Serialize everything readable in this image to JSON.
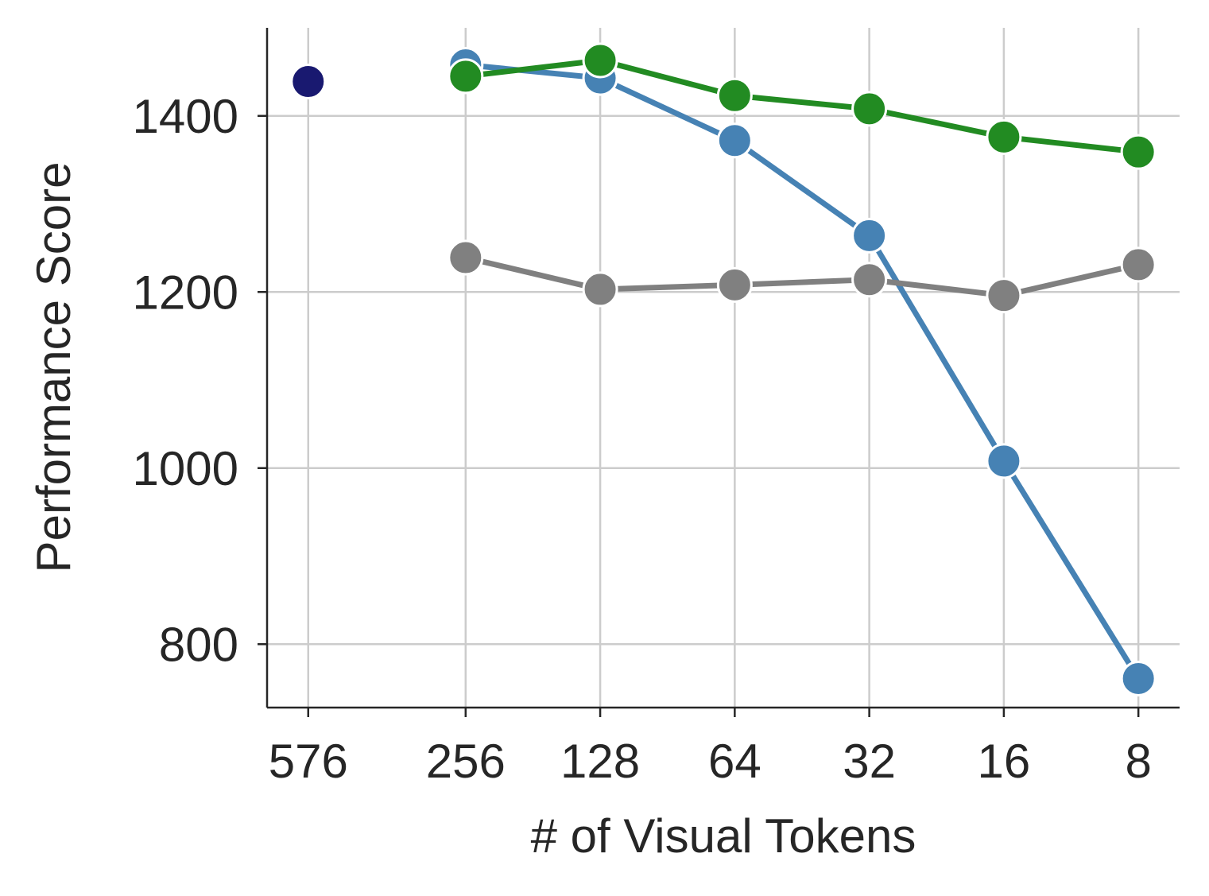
{
  "chart_data": {
    "type": "line",
    "xlabel": "# of Visual Tokens",
    "ylabel": "Performance Score",
    "xscale": "log",
    "xlim": [
      712,
      6.47
    ],
    "xticks": [
      576,
      256,
      128,
      64,
      32,
      16,
      8
    ],
    "ylim": [
      728,
      1500
    ],
    "yticks": [
      800,
      1000,
      1200,
      1400
    ],
    "grid": true,
    "series": [
      {
        "color": "#191970",
        "x": [
          576
        ],
        "values": [
          1439
        ]
      },
      {
        "color": "#4682b4",
        "x": [
          256,
          128,
          64,
          32,
          16,
          8
        ],
        "values": [
          1458,
          1443,
          1372,
          1264,
          1008,
          761
        ]
      },
      {
        "color": "#808080",
        "x": [
          256,
          128,
          64,
          32,
          16,
          8
        ],
        "values": [
          1239,
          1203,
          1208,
          1214,
          1196,
          1231
        ]
      },
      {
        "color": "#228b22",
        "x": [
          256,
          128,
          64,
          32,
          16,
          8
        ],
        "values": [
          1445,
          1463,
          1423,
          1408,
          1376,
          1359
        ]
      }
    ]
  }
}
